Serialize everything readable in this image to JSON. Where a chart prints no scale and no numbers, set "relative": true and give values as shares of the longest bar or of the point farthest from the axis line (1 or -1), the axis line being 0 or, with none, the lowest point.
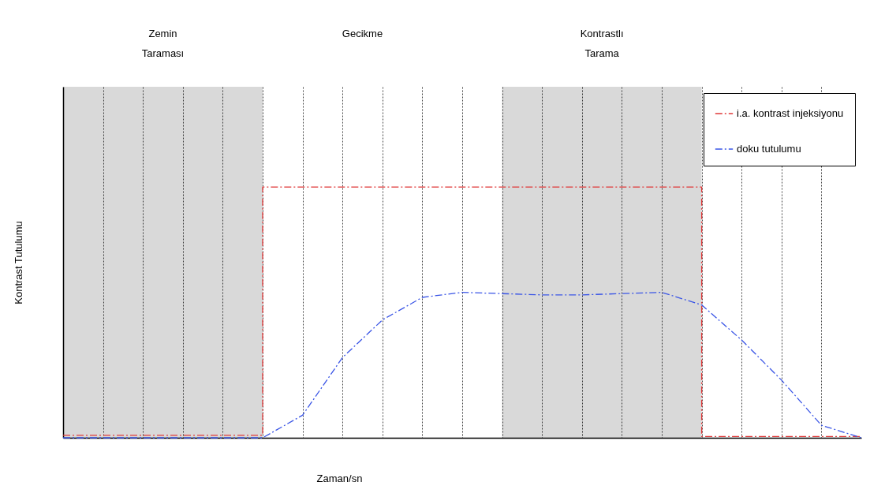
{
  "chart_data": {
    "type": "line",
    "xlabel": "Zaman/sn",
    "ylabel": "Kontrast Tutulumu",
    "relative": true,
    "categories": [
      null,
      null,
      null,
      null,
      null,
      null,
      null,
      null,
      null,
      null,
      null,
      null,
      null,
      null,
      null,
      null,
      null,
      null,
      null,
      null,
      null
    ],
    "grid": "x",
    "legend": "top right",
    "line_style": "dashed",
    "series": [
      {
        "name": "i.a. kontrast injeksiyonu",
        "type": "step",
        "color": "#e03a3a",
        "values": [
          0.01,
          0.01,
          0.01,
          0.01,
          0.01,
          1,
          1,
          1,
          1,
          1,
          1,
          1,
          1,
          1,
          1,
          1,
          0.005,
          0.005,
          0.005,
          0.005,
          0.005
        ]
      },
      {
        "name": "doku tutulumu",
        "type": "line",
        "color": "#3a55e6",
        "values": [
          0,
          0,
          0,
          0,
          0,
          0,
          0.09,
          0.32,
          0.47,
          0.56,
          0.58,
          0.575,
          0.57,
          0.57,
          0.575,
          0.58,
          0.53,
          0.39,
          0.23,
          0.05,
          0
        ]
      }
    ],
    "annotations": [
      "Zemin Taraması",
      "Gecikme",
      "Kontrastlı Tarama"
    ]
  }
}
